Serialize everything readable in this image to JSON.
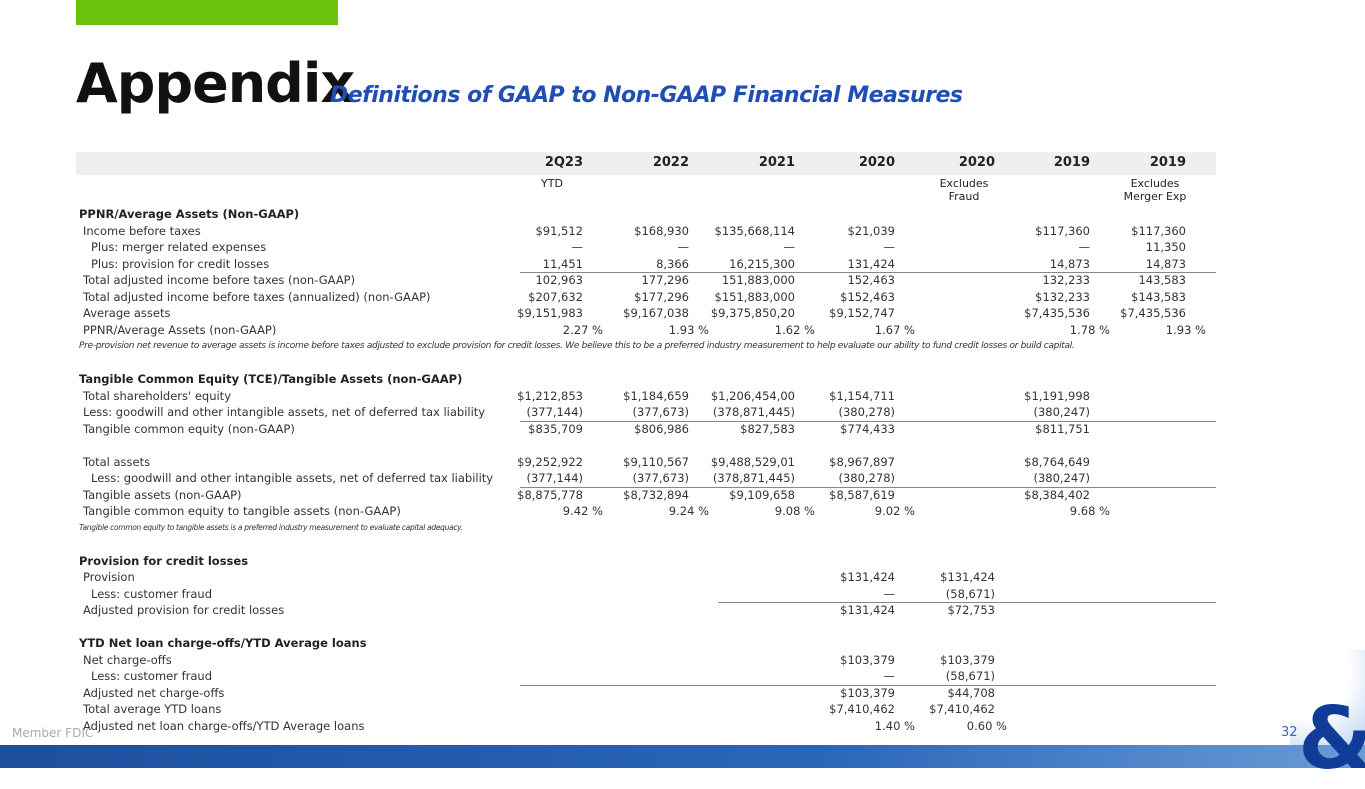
{
  "header": {
    "title": "Appendix",
    "subtitle": "Definitions of GAAP to Non-GAAP Financial Measures"
  },
  "columns": [
    {
      "label": "2Q23",
      "sub": "YTD"
    },
    {
      "label": "2022",
      "sub": ""
    },
    {
      "label": "2021",
      "sub": ""
    },
    {
      "label": "2020",
      "sub": ""
    },
    {
      "label": "2020",
      "sub": "Excludes\nFraud"
    },
    {
      "label": "2019",
      "sub": ""
    },
    {
      "label": "2019",
      "sub": "Excludes\nMerger Exp"
    }
  ],
  "rows": [
    {
      "label": "PPNR/Average Assets (Non-GAAP)",
      "style": "bold",
      "values": []
    },
    {
      "label": "Income before taxes",
      "values": [
        "$91,512",
        "$168,930",
        "$135,668,114",
        "$21,039",
        "",
        "$117,360",
        "$117,360"
      ]
    },
    {
      "label": "Plus: merger related expenses",
      "style": "i1",
      "values": [
        "—",
        "—",
        "—",
        "—",
        "",
        "—",
        "11,350"
      ]
    },
    {
      "label": "Plus: provision for credit losses",
      "style": "i1",
      "values": [
        "11,451",
        "8,366",
        "16,215,300",
        "131,424",
        "",
        "14,873",
        "14,873"
      ]
    },
    {
      "label": "Total adjusted income before taxes (non-GAAP)",
      "rule": 0,
      "values": [
        "102,963",
        "177,296",
        "151,883,000",
        "152,463",
        "",
        "132,233",
        "143,583"
      ]
    },
    {
      "label": "Total adjusted income before taxes (annualized) (non-GAAP)",
      "values": [
        "$207,632",
        "$177,296",
        "$151,883,000",
        "$152,463",
        "",
        "$132,233",
        "$143,583"
      ]
    },
    {
      "label": "Average assets",
      "values": [
        "$9,151,983",
        "$9,167,038",
        "$9,375,850,20",
        "$9,152,747",
        "",
        "$7,435,536",
        "$7,435,536"
      ]
    },
    {
      "label": "PPNR/Average Assets (non-GAAP)",
      "pct": true,
      "values": [
        "2.27 %",
        "1.93 %",
        "1.62 %",
        "1.67 %",
        "",
        "1.78 %",
        "1.93 %"
      ]
    },
    {
      "label": "Pre-provision net revenue to average assets is income before taxes adjusted to exclude provision for credit losses. We believe this to be a preferred industry measurement to help evaluate our ability to fund credit losses or build capital.",
      "style": "note",
      "values": []
    },
    {
      "label": "",
      "values": []
    },
    {
      "label": "Tangible Common Equity (TCE)/Tangible Assets (non-GAAP)",
      "style": "bold",
      "values": []
    },
    {
      "label": "Total shareholders' equity",
      "values": [
        "$1,212,853",
        "$1,184,659",
        "$1,206,454,00",
        "$1,154,711",
        "",
        "$1,191,998",
        ""
      ]
    },
    {
      "label": "Less: goodwill and other intangible assets, net of deferred tax liability",
      "style": "i0",
      "values": [
        "(377,144)",
        "(377,673)",
        "(378,871,445)",
        "(380,278)",
        "",
        "(380,247)",
        ""
      ]
    },
    {
      "label": "Tangible common equity (non-GAAP)",
      "rule": 0,
      "values": [
        "$835,709",
        "$806,986",
        "$827,583",
        "$774,433",
        "",
        "$811,751",
        ""
      ]
    },
    {
      "label": "",
      "values": []
    },
    {
      "label": "Total assets",
      "values": [
        "$9,252,922",
        "$9,110,567",
        "$9,488,529,01",
        "$8,967,897",
        "",
        "$8,764,649",
        ""
      ]
    },
    {
      "label": "Less: goodwill and other intangible assets, net of deferred tax liability",
      "style": "i1",
      "values": [
        "(377,144)",
        "(377,673)",
        "(378,871,445)",
        "(380,278)",
        "",
        "(380,247)",
        ""
      ]
    },
    {
      "label": "Tangible assets (non-GAAP)",
      "rule": 0,
      "values": [
        "$8,875,778",
        "$8,732,894",
        "$9,109,658",
        "$8,587,619",
        "",
        "$8,384,402",
        ""
      ]
    },
    {
      "label": "Tangible common equity to tangible assets (non-GAAP)",
      "pct": true,
      "values": [
        "9.42 %",
        "9.24 %",
        "9.08 %",
        "9.02 %",
        "",
        "9.68 %",
        ""
      ]
    },
    {
      "label": "Tangible common equity to tangible assets is a preferred industry measurement to evaluate capital adequacy.",
      "style": "note note2",
      "values": []
    },
    {
      "label": "",
      "values": []
    },
    {
      "label": "Provision for credit losses",
      "style": "bold",
      "values": []
    },
    {
      "label": "Provision",
      "values": [
        "",
        "",
        "",
        "$131,424",
        "$131,424",
        "",
        ""
      ]
    },
    {
      "label": "Less: customer fraud",
      "style": "i1",
      "values": [
        "",
        "",
        "",
        "—",
        "(58,671)",
        "",
        ""
      ]
    },
    {
      "label": "Adjusted provision for credit losses",
      "rule": 3,
      "values": [
        "",
        "",
        "",
        "$131,424",
        "$72,753",
        "",
        ""
      ]
    },
    {
      "label": "",
      "values": []
    },
    {
      "label": "YTD Net loan charge-offs/YTD Average loans",
      "style": "bold",
      "values": []
    },
    {
      "label": "Net charge-offs",
      "values": [
        "",
        "",
        "",
        "$103,379",
        "$103,379",
        "",
        ""
      ]
    },
    {
      "label": "Less: customer fraud",
      "style": "i1",
      "values": [
        "",
        "",
        "",
        "—",
        "(58,671)",
        "",
        ""
      ]
    },
    {
      "label": "Adjusted net charge-offs",
      "rule": 0,
      "values": [
        "",
        "",
        "",
        "$103,379",
        "$44,708",
        "",
        ""
      ]
    },
    {
      "label": "Total average YTD loans",
      "values": [
        "",
        "",
        "",
        "$7,410,462",
        "$7,410,462",
        "",
        ""
      ]
    },
    {
      "label": "Adjusted net loan charge-offs/YTD Average loans",
      "pct": true,
      "values": [
        "",
        "",
        "",
        "1.40 %",
        "0.60 %",
        "",
        ""
      ]
    }
  ],
  "footer": {
    "member": "Member FDIC",
    "page": "32",
    "logo": "&"
  },
  "colors": {
    "accent_green": "#6cc20a",
    "title_blue": "#1f4fb4",
    "logo_blue": "#0f3c97"
  }
}
